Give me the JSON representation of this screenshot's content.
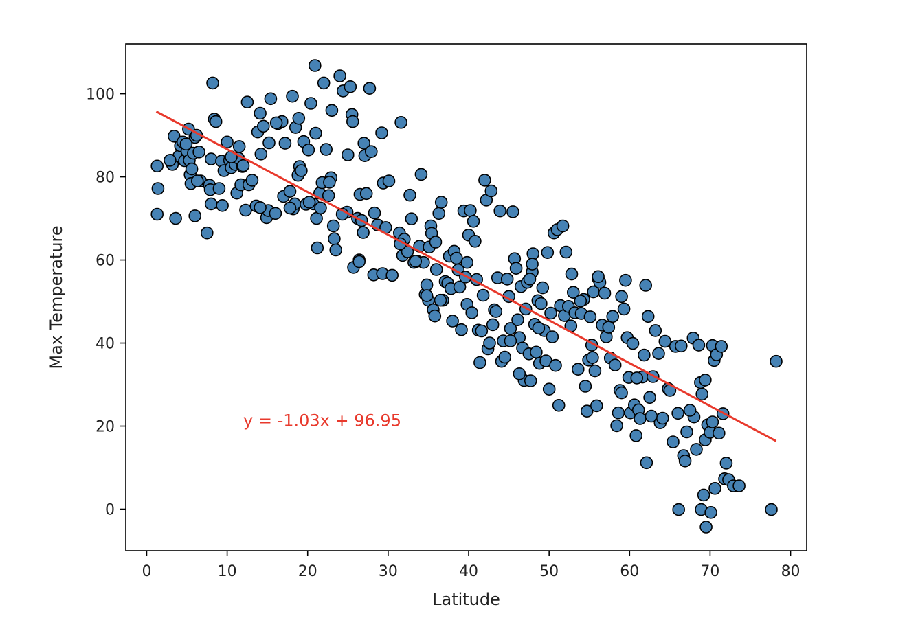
{
  "chart_data": {
    "type": "scatter",
    "xlabel": "Latitude",
    "ylabel": "Max Temperature",
    "xlim": [
      -2.6,
      82
    ],
    "ylim": [
      -10,
      112
    ],
    "xticks": [
      0,
      10,
      20,
      30,
      40,
      50,
      60,
      70,
      80
    ],
    "yticks": [
      0,
      20,
      40,
      60,
      80,
      100
    ],
    "grid": false,
    "legend": "none",
    "marker_fill": "#4682b4",
    "marker_edge": "#000000",
    "line_color": "#e8392c",
    "annotation": "y = -1.03x + 96.95",
    "annotation_position": [
      12,
      20
    ],
    "regression": {
      "slope": -1.03,
      "intercept": 96.95,
      "x_range": [
        1.2,
        78.2
      ]
    },
    "points": [
      [
        1.3,
        82.6
      ],
      [
        1.4,
        77.2
      ],
      [
        1.3,
        71.0
      ],
      [
        3.0,
        84.0
      ],
      [
        3.2,
        83.0
      ],
      [
        3.4,
        89.8
      ],
      [
        3.6,
        70.0
      ],
      [
        4.0,
        85.0
      ],
      [
        4.2,
        87.5
      ],
      [
        4.5,
        88.4
      ],
      [
        4.7,
        83.9
      ],
      [
        5.0,
        86.2
      ],
      [
        5.2,
        91.5
      ],
      [
        5.3,
        84.0
      ],
      [
        5.4,
        80.5
      ],
      [
        5.5,
        78.4
      ],
      [
        5.6,
        81.9
      ],
      [
        5.8,
        85.7
      ],
      [
        6.0,
        89.5
      ],
      [
        6.0,
        70.6
      ],
      [
        6.2,
        90.0
      ],
      [
        6.5,
        86.0
      ],
      [
        6.7,
        79.0
      ],
      [
        7.5,
        66.5
      ],
      [
        7.8,
        78.0
      ],
      [
        7.9,
        76.9
      ],
      [
        8.0,
        84.3
      ],
      [
        8.0,
        73.5
      ],
      [
        8.2,
        102.6
      ],
      [
        8.4,
        93.9
      ],
      [
        8.6,
        93.3
      ],
      [
        9.0,
        77.2
      ],
      [
        9.3,
        83.8
      ],
      [
        9.4,
        73.1
      ],
      [
        9.6,
        81.5
      ],
      [
        10.0,
        88.4
      ],
      [
        10.3,
        84.0
      ],
      [
        10.5,
        82.2
      ],
      [
        11.0,
        83.0
      ],
      [
        11.2,
        76.1
      ],
      [
        11.4,
        84.5
      ],
      [
        11.5,
        87.3
      ],
      [
        11.7,
        78.1
      ],
      [
        11.9,
        82.5
      ],
      [
        12.3,
        72.0
      ],
      [
        12.5,
        98.0
      ],
      [
        12.7,
        78.1
      ],
      [
        13.1,
        79.2
      ],
      [
        13.6,
        73.0
      ],
      [
        13.8,
        90.8
      ],
      [
        14.1,
        95.3
      ],
      [
        14.2,
        85.5
      ],
      [
        14.5,
        92.2
      ],
      [
        14.9,
        70.2
      ],
      [
        15.1,
        71.9
      ],
      [
        15.2,
        88.2
      ],
      [
        15.4,
        98.8
      ],
      [
        16.0,
        71.2
      ],
      [
        16.3,
        92.8
      ],
      [
        16.8,
        93.3
      ],
      [
        17.0,
        75.3
      ],
      [
        17.2,
        88.1
      ],
      [
        17.8,
        76.5
      ],
      [
        18.1,
        99.4
      ],
      [
        18.2,
        72.3
      ],
      [
        18.4,
        73.5
      ],
      [
        18.5,
        91.9
      ],
      [
        18.8,
        80.4
      ],
      [
        18.9,
        94.1
      ],
      [
        19.0,
        82.5
      ],
      [
        19.2,
        81.5
      ],
      [
        19.5,
        88.5
      ],
      [
        19.8,
        73.4
      ],
      [
        20.1,
        86.5
      ],
      [
        20.4,
        97.7
      ],
      [
        20.7,
        73.5
      ],
      [
        20.9,
        106.8
      ],
      [
        21.0,
        90.5
      ],
      [
        21.1,
        70.0
      ],
      [
        21.2,
        62.9
      ],
      [
        21.5,
        76.1
      ],
      [
        21.6,
        72.5
      ],
      [
        21.8,
        78.6
      ],
      [
        22.0,
        102.6
      ],
      [
        22.3,
        86.6
      ],
      [
        22.6,
        75.5
      ],
      [
        22.9,
        79.8
      ],
      [
        23.0,
        96.0
      ],
      [
        23.2,
        68.2
      ],
      [
        23.3,
        65.1
      ],
      [
        23.5,
        62.4
      ],
      [
        24.0,
        104.3
      ],
      [
        24.4,
        100.7
      ],
      [
        24.9,
        71.5
      ],
      [
        25.0,
        85.3
      ],
      [
        25.3,
        101.7
      ],
      [
        25.5,
        95.0
      ],
      [
        25.6,
        93.3
      ],
      [
        25.7,
        58.2
      ],
      [
        26.2,
        70.0
      ],
      [
        26.4,
        60.0
      ],
      [
        26.5,
        75.8
      ],
      [
        26.7,
        69.5
      ],
      [
        26.9,
        66.6
      ],
      [
        27.0,
        88.1
      ],
      [
        27.1,
        85.1
      ],
      [
        27.3,
        76.0
      ],
      [
        27.7,
        101.3
      ],
      [
        27.9,
        86.1
      ],
      [
        28.2,
        56.4
      ],
      [
        28.3,
        71.3
      ],
      [
        28.7,
        68.4
      ],
      [
        29.2,
        90.6
      ],
      [
        29.3,
        56.7
      ],
      [
        29.4,
        78.5
      ],
      [
        29.7,
        67.8
      ],
      [
        30.1,
        79.0
      ],
      [
        30.5,
        56.3
      ],
      [
        31.4,
        66.5
      ],
      [
        31.6,
        93.1
      ],
      [
        31.8,
        61.1
      ],
      [
        32.0,
        65.0
      ],
      [
        32.4,
        62.0
      ],
      [
        32.7,
        75.6
      ],
      [
        32.9,
        69.9
      ],
      [
        33.2,
        59.4
      ],
      [
        33.6,
        59.7
      ],
      [
        33.9,
        63.3
      ],
      [
        34.1,
        80.6
      ],
      [
        34.4,
        59.4
      ],
      [
        34.6,
        51.7
      ],
      [
        34.8,
        54.0
      ],
      [
        35.0,
        50.3
      ],
      [
        35.1,
        63.1
      ],
      [
        35.3,
        68.2
      ],
      [
        35.4,
        66.4
      ],
      [
        35.6,
        48.0
      ],
      [
        35.8,
        46.5
      ],
      [
        35.9,
        64.3
      ],
      [
        36.0,
        57.7
      ],
      [
        36.3,
        71.2
      ],
      [
        36.6,
        73.9
      ],
      [
        36.8,
        50.3
      ],
      [
        37.1,
        54.8
      ],
      [
        37.4,
        54.4
      ],
      [
        37.6,
        60.9
      ],
      [
        37.8,
        53.1
      ],
      [
        38.0,
        45.3
      ],
      [
        38.2,
        62.1
      ],
      [
        38.5,
        60.4
      ],
      [
        38.7,
        57.6
      ],
      [
        38.9,
        53.5
      ],
      [
        39.1,
        43.2
      ],
      [
        39.4,
        71.8
      ],
      [
        39.6,
        55.9
      ],
      [
        39.8,
        49.3
      ],
      [
        40.0,
        66.0
      ],
      [
        40.2,
        71.9
      ],
      [
        40.4,
        47.3
      ],
      [
        40.6,
        69.3
      ],
      [
        40.8,
        64.5
      ],
      [
        41.0,
        55.3
      ],
      [
        41.2,
        43.1
      ],
      [
        41.4,
        35.3
      ],
      [
        41.6,
        42.9
      ],
      [
        41.8,
        51.5
      ],
      [
        42.0,
        79.2
      ],
      [
        42.2,
        74.4
      ],
      [
        42.4,
        38.6
      ],
      [
        42.6,
        40.0
      ],
      [
        42.8,
        76.6
      ],
      [
        43.0,
        44.4
      ],
      [
        43.2,
        48.0
      ],
      [
        43.4,
        47.6
      ],
      [
        43.6,
        55.7
      ],
      [
        43.9,
        71.8
      ],
      [
        44.1,
        35.6
      ],
      [
        44.3,
        40.5
      ],
      [
        44.5,
        36.6
      ],
      [
        44.8,
        55.4
      ],
      [
        45.0,
        51.2
      ],
      [
        45.2,
        43.5
      ],
      [
        45.5,
        71.6
      ],
      [
        45.7,
        60.3
      ],
      [
        45.9,
        58.0
      ],
      [
        46.1,
        45.6
      ],
      [
        46.3,
        41.3
      ],
      [
        46.5,
        53.6
      ],
      [
        46.7,
        38.8
      ],
      [
        46.9,
        31.0
      ],
      [
        47.1,
        48.2
      ],
      [
        47.3,
        54.6
      ],
      [
        47.5,
        37.4
      ],
      [
        47.7,
        30.9
      ],
      [
        47.9,
        57.1
      ],
      [
        48.0,
        61.5
      ],
      [
        48.2,
        44.5
      ],
      [
        48.4,
        37.8
      ],
      [
        48.6,
        50.2
      ],
      [
        48.8,
        35.1
      ],
      [
        49.0,
        49.5
      ],
      [
        49.2,
        53.3
      ],
      [
        49.4,
        43.0
      ],
      [
        49.6,
        35.7
      ],
      [
        49.8,
        61.8
      ],
      [
        50.0,
        28.9
      ],
      [
        50.2,
        47.2
      ],
      [
        50.4,
        41.5
      ],
      [
        50.6,
        66.5
      ],
      [
        50.8,
        34.6
      ],
      [
        51.0,
        67.3
      ],
      [
        51.2,
        25.0
      ],
      [
        51.4,
        49.0
      ],
      [
        51.7,
        68.2
      ],
      [
        51.9,
        46.6
      ],
      [
        52.1,
        61.9
      ],
      [
        52.4,
        48.8
      ],
      [
        52.7,
        44.1
      ],
      [
        52.8,
        56.6
      ],
      [
        53.0,
        52.2
      ],
      [
        53.2,
        47.3
      ],
      [
        53.6,
        33.7
      ],
      [
        54.0,
        47.1
      ],
      [
        54.3,
        50.5
      ],
      [
        54.5,
        29.6
      ],
      [
        54.7,
        23.6
      ],
      [
        54.9,
        35.9
      ],
      [
        55.1,
        46.3
      ],
      [
        55.3,
        39.5
      ],
      [
        55.5,
        52.3
      ],
      [
        55.7,
        33.3
      ],
      [
        55.9,
        24.9
      ],
      [
        56.1,
        55.5
      ],
      [
        56.3,
        54.6
      ],
      [
        56.6,
        44.3
      ],
      [
        56.9,
        52.0
      ],
      [
        57.1,
        41.5
      ],
      [
        57.4,
        43.8
      ],
      [
        57.6,
        36.4
      ],
      [
        57.9,
        46.4
      ],
      [
        58.2,
        34.7
      ],
      [
        58.4,
        20.1
      ],
      [
        58.6,
        23.2
      ],
      [
        58.8,
        28.6
      ],
      [
        59.0,
        51.2
      ],
      [
        59.3,
        48.2
      ],
      [
        59.5,
        55.1
      ],
      [
        59.7,
        41.3
      ],
      [
        59.9,
        31.7
      ],
      [
        60.1,
        23.2
      ],
      [
        60.4,
        39.9
      ],
      [
        60.6,
        25.1
      ],
      [
        60.8,
        17.7
      ],
      [
        61.1,
        23.9
      ],
      [
        61.3,
        21.8
      ],
      [
        61.6,
        31.8
      ],
      [
        61.8,
        37.1
      ],
      [
        62.0,
        53.9
      ],
      [
        62.1,
        11.2
      ],
      [
        62.3,
        46.4
      ],
      [
        62.5,
        26.9
      ],
      [
        62.7,
        22.4
      ],
      [
        62.9,
        31.9
      ],
      [
        63.2,
        43.0
      ],
      [
        63.6,
        37.5
      ],
      [
        63.8,
        20.8
      ],
      [
        64.1,
        21.9
      ],
      [
        64.4,
        40.4
      ],
      [
        64.8,
        29.0
      ],
      [
        65.0,
        28.6
      ],
      [
        65.4,
        16.2
      ],
      [
        65.7,
        39.2
      ],
      [
        66.0,
        23.1
      ],
      [
        66.1,
        -0.1
      ],
      [
        66.4,
        39.3
      ],
      [
        66.7,
        12.9
      ],
      [
        66.9,
        11.6
      ],
      [
        67.1,
        18.6
      ],
      [
        67.9,
        41.2
      ],
      [
        68.0,
        22.2
      ],
      [
        68.3,
        14.4
      ],
      [
        68.6,
        39.5
      ],
      [
        68.8,
        30.5
      ],
      [
        68.9,
        -0.1
      ],
      [
        69.2,
        3.4
      ],
      [
        69.4,
        16.7
      ],
      [
        69.5,
        -4.3
      ],
      [
        69.7,
        20.3
      ],
      [
        70.0,
        18.5
      ],
      [
        70.1,
        -0.8
      ],
      [
        70.3,
        39.4
      ],
      [
        70.5,
        35.8
      ],
      [
        70.6,
        5.0
      ],
      [
        70.8,
        37.2
      ],
      [
        71.1,
        18.3
      ],
      [
        71.4,
        39.2
      ],
      [
        71.6,
        23.0
      ],
      [
        71.8,
        7.3
      ],
      [
        72.0,
        11.1
      ],
      [
        72.3,
        7.1
      ],
      [
        72.9,
        5.6
      ],
      [
        73.6,
        5.6
      ],
      [
        77.6,
        -0.1
      ],
      [
        78.2,
        35.6
      ],
      [
        69.4,
        31.1
      ],
      [
        69.0,
        27.7
      ],
      [
        70.3,
        21.0
      ],
      [
        67.5,
        23.8
      ],
      [
        60.9,
        31.6
      ],
      [
        59.0,
        28.0
      ],
      [
        55.4,
        36.5
      ],
      [
        48.7,
        43.6
      ],
      [
        47.6,
        55.4
      ],
      [
        47.9,
        59.0
      ],
      [
        31.5,
        63.9
      ],
      [
        33.4,
        59.7
      ],
      [
        36.5,
        50.3
      ],
      [
        34.8,
        51.4
      ],
      [
        39.8,
        59.4
      ],
      [
        16.1,
        93.0
      ],
      [
        14.1,
        72.6
      ],
      [
        12.0,
        82.7
      ],
      [
        10.5,
        84.8
      ],
      [
        6.3,
        79.0
      ],
      [
        20.2,
        73.9
      ],
      [
        17.8,
        72.5
      ],
      [
        22.7,
        78.7
      ],
      [
        24.3,
        71.0
      ],
      [
        26.4,
        59.6
      ],
      [
        4.9,
        87.9
      ],
      [
        2.9,
        84.0
      ],
      [
        45.2,
        40.5
      ],
      [
        46.3,
        32.6
      ],
      [
        53.9,
        50.1
      ],
      [
        56.1,
        56.0
      ]
    ]
  }
}
